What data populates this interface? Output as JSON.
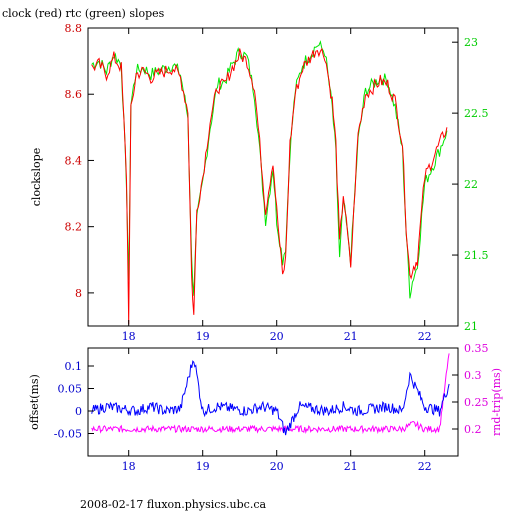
{
  "title": "clock (red) rtc (green) slopes",
  "footer": "2008-02-17 fluxon.physics.ubc.ca",
  "colors": {
    "clock": "#ff0000",
    "rtc": "#00e600",
    "offset": "#0000ff",
    "rndtrip": "#ff00ff",
    "axis_left_top": "#cc0000",
    "axis_right_top": "#00cc00",
    "axis_left_bottom": "#0000cc",
    "axis_right_bottom": "#dd00dd",
    "frame": "#000000"
  },
  "chart_data": [
    {
      "type": "line",
      "name": "slopes",
      "ylabel": "clockslope",
      "xlim": [
        17.45,
        22.45
      ],
      "ylim": [
        7.9,
        8.8
      ],
      "y2lim": [
        21.0,
        23.1
      ],
      "x_ticks": [
        "18",
        "19",
        "20",
        "21",
        "22"
      ],
      "y_ticks": [
        "8",
        "8.2",
        "8.4",
        "8.6",
        "8.8"
      ],
      "y2_ticks": [
        "21",
        "21.5",
        "22",
        "22.5",
        "23"
      ],
      "series": [
        {
          "name": "clock",
          "axis": "left",
          "x": [
            17.5,
            17.6,
            17.7,
            17.8,
            17.9,
            17.97,
            18.0,
            18.03,
            18.1,
            18.2,
            18.3,
            18.4,
            18.5,
            18.6,
            18.7,
            18.8,
            18.85,
            18.88,
            18.92,
            19.0,
            19.1,
            19.2,
            19.3,
            19.4,
            19.5,
            19.6,
            19.7,
            19.75,
            19.85,
            19.95,
            20.0,
            20.08,
            20.12,
            20.18,
            20.25,
            20.35,
            20.45,
            20.55,
            20.65,
            20.75,
            20.8,
            20.85,
            20.9,
            21.0,
            21.1,
            21.2,
            21.3,
            21.4,
            21.5,
            21.6,
            21.7,
            21.75,
            21.8,
            21.85,
            21.9,
            22.0,
            22.1,
            22.2,
            22.3
          ],
          "y": [
            8.68,
            8.69,
            8.66,
            8.71,
            8.68,
            8.35,
            7.92,
            8.55,
            8.66,
            8.67,
            8.65,
            8.66,
            8.67,
            8.68,
            8.65,
            8.55,
            8.05,
            7.93,
            8.25,
            8.35,
            8.52,
            8.62,
            8.63,
            8.68,
            8.72,
            8.7,
            8.62,
            8.5,
            8.25,
            8.4,
            8.25,
            8.05,
            8.1,
            8.45,
            8.6,
            8.68,
            8.71,
            8.74,
            8.72,
            8.58,
            8.45,
            8.15,
            8.3,
            8.08,
            8.48,
            8.6,
            8.62,
            8.64,
            8.63,
            8.58,
            8.45,
            8.2,
            8.05,
            8.08,
            8.1,
            8.35,
            8.4,
            8.45,
            8.5
          ]
        },
        {
          "name": "rtc",
          "axis": "left",
          "x": [
            17.5,
            17.6,
            17.7,
            17.8,
            17.9,
            17.97,
            18.0,
            18.03,
            18.1,
            18.2,
            18.3,
            18.4,
            18.5,
            18.6,
            18.7,
            18.8,
            18.85,
            18.88,
            18.92,
            19.0,
            19.1,
            19.2,
            19.3,
            19.4,
            19.5,
            19.6,
            19.7,
            19.75,
            19.85,
            19.95,
            20.0,
            20.08,
            20.12,
            20.18,
            20.25,
            20.35,
            20.45,
            20.55,
            20.65,
            20.75,
            20.8,
            20.85,
            20.9,
            21.0,
            21.1,
            21.2,
            21.3,
            21.4,
            21.5,
            21.6,
            21.7,
            21.75,
            21.8,
            21.85,
            21.9,
            22.0,
            22.1,
            22.2,
            22.3
          ],
          "y": [
            8.69,
            8.7,
            8.67,
            8.72,
            8.69,
            8.33,
            8.02,
            8.57,
            8.67,
            8.68,
            8.66,
            8.67,
            8.68,
            8.69,
            8.66,
            8.53,
            8.1,
            8.0,
            8.22,
            8.33,
            8.5,
            8.63,
            8.64,
            8.69,
            8.73,
            8.71,
            8.6,
            8.48,
            8.22,
            8.38,
            8.22,
            8.1,
            8.14,
            8.43,
            8.61,
            8.69,
            8.72,
            8.75,
            8.73,
            8.56,
            8.42,
            8.1,
            8.28,
            8.1,
            8.46,
            8.61,
            8.63,
            8.65,
            8.64,
            8.56,
            8.43,
            8.18,
            8.0,
            8.05,
            8.08,
            8.33,
            8.38,
            8.43,
            8.49
          ]
        }
      ]
    },
    {
      "type": "line",
      "name": "offset-rndtrip",
      "ylabel": "offset(ms)",
      "y2label": "rnd-trip(ms)",
      "xlim": [
        17.45,
        22.45
      ],
      "ylim": [
        -0.1,
        0.14
      ],
      "y2lim": [
        0.15,
        0.35
      ],
      "x_ticks": [
        "18",
        "19",
        "20",
        "21",
        "22"
      ],
      "y_ticks": [
        "-0.05",
        "0",
        "0.05",
        "0.1"
      ],
      "y2_ticks": [
        "0.2",
        "0.25",
        "0.3",
        "0.35"
      ],
      "series": [
        {
          "name": "offset",
          "axis": "left",
          "x": [
            17.5,
            17.7,
            17.9,
            18.1,
            18.3,
            18.5,
            18.7,
            18.88,
            19.0,
            19.2,
            19.4,
            19.6,
            19.8,
            20.0,
            20.12,
            20.3,
            20.5,
            20.7,
            20.9,
            21.1,
            21.3,
            21.5,
            21.7,
            21.8,
            22.0,
            22.2,
            22.33
          ],
          "y": [
            0.0,
            0.01,
            0.005,
            0.0,
            0.01,
            0.0,
            0.005,
            0.12,
            0.0,
            0.01,
            0.005,
            0.0,
            0.01,
            0.0,
            -0.05,
            0.01,
            0.005,
            0.0,
            0.01,
            0.0,
            0.005,
            0.01,
            0.0,
            0.08,
            0.01,
            0.0,
            0.06
          ]
        },
        {
          "name": "rnd-trip",
          "axis": "right",
          "x": [
            17.5,
            17.7,
            17.9,
            18.1,
            18.3,
            18.5,
            18.7,
            18.9,
            19.1,
            19.3,
            19.5,
            19.7,
            19.9,
            20.1,
            20.3,
            20.5,
            20.7,
            20.9,
            21.1,
            21.3,
            21.5,
            21.7,
            21.85,
            22.0,
            22.2,
            22.33
          ],
          "y": [
            0.2,
            0.2,
            0.2,
            0.2,
            0.2,
            0.2,
            0.2,
            0.2,
            0.2,
            0.2,
            0.2,
            0.2,
            0.2,
            0.2,
            0.2,
            0.2,
            0.2,
            0.2,
            0.2,
            0.2,
            0.2,
            0.2,
            0.21,
            0.2,
            0.2,
            0.34
          ]
        }
      ]
    }
  ]
}
